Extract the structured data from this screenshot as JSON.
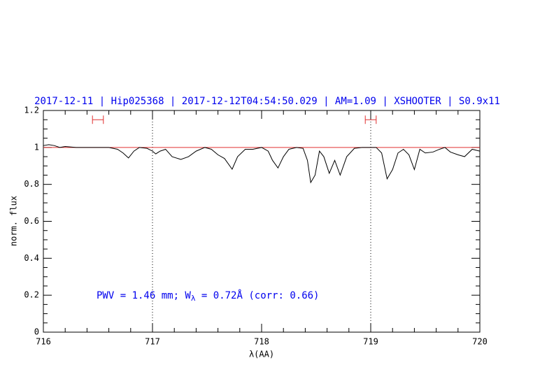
{
  "chart_data": {
    "type": "line",
    "title": "2017-12-11 | Hip025368 | 2017-12-12T04:54:50.029 | AM=1.09 | XSHOOTER | S0.9x11",
    "x_label": "λ(AA)",
    "y_label": "norm. flux",
    "annotation": [
      "PWV = 1.46 mm; W",
      "λ",
      " = 0.72Å (corr: 0.66)"
    ],
    "xlim": [
      716,
      720
    ],
    "ylim": [
      0,
      1.2
    ],
    "xticks": [
      716,
      717,
      718,
      719,
      720
    ],
    "yticks": [
      0,
      0.2,
      0.4,
      0.6,
      0.8,
      1,
      1.2
    ],
    "xticks_minor": [
      716.2,
      716.4,
      716.6,
      716.8,
      717.2,
      717.4,
      717.6,
      717.8,
      718.2,
      718.4,
      718.6,
      718.8,
      719.2,
      719.4,
      719.6,
      719.8
    ],
    "yticks_minor": [
      0.05,
      0.1,
      0.15,
      0.25,
      0.3,
      0.35,
      0.45,
      0.5,
      0.55,
      0.65,
      0.7,
      0.75,
      0.85,
      0.9,
      0.95,
      1.05,
      1.1,
      1.15
    ],
    "vlines": [
      717,
      719
    ],
    "hline": 1,
    "ranges": [
      {
        "x": [
          716.45,
          716.55
        ],
        "y": 1.15
      },
      {
        "x": [
          718.95,
          719.05
        ],
        "y": 1.15
      }
    ],
    "series": [
      {
        "color": "#000000",
        "x": [
          716.0,
          716.05,
          716.1,
          716.15,
          716.2,
          716.3,
          716.4,
          716.5,
          716.6,
          716.68,
          716.73,
          716.78,
          716.83,
          716.88,
          716.95,
          717.0,
          717.03,
          717.07,
          717.12,
          717.18,
          717.26,
          717.33,
          717.4,
          717.48,
          717.54,
          717.6,
          717.66,
          717.73,
          717.78,
          717.85,
          717.92,
          718.0,
          718.06,
          718.1,
          718.15,
          718.2,
          718.25,
          718.32,
          718.38,
          718.42,
          718.45,
          718.49,
          718.53,
          718.57,
          718.62,
          718.67,
          718.72,
          718.78,
          718.85,
          718.92,
          719.0,
          719.05,
          719.1,
          719.15,
          719.2,
          719.25,
          719.3,
          719.35,
          719.4,
          719.45,
          719.5,
          719.57,
          719.63,
          719.68,
          719.73,
          719.8,
          719.86,
          719.93,
          720.0
        ],
        "values": [
          1.01,
          1.015,
          1.01,
          1.0,
          1.005,
          1.0,
          1.0,
          1.0,
          1.0,
          0.99,
          0.97,
          0.943,
          0.98,
          1.0,
          0.995,
          0.98,
          0.965,
          0.98,
          0.99,
          0.95,
          0.935,
          0.95,
          0.98,
          1.0,
          0.99,
          0.96,
          0.94,
          0.882,
          0.95,
          0.99,
          0.99,
          1.0,
          0.98,
          0.93,
          0.889,
          0.95,
          0.99,
          1.0,
          0.995,
          0.93,
          0.81,
          0.85,
          0.98,
          0.95,
          0.86,
          0.93,
          0.85,
          0.95,
          0.995,
          1.0,
          1.0,
          1.0,
          0.97,
          0.83,
          0.88,
          0.97,
          0.99,
          0.96,
          0.88,
          0.99,
          0.97,
          0.975,
          0.99,
          1.0,
          0.975,
          0.96,
          0.95,
          0.99,
          0.98
        ]
      }
    ]
  }
}
